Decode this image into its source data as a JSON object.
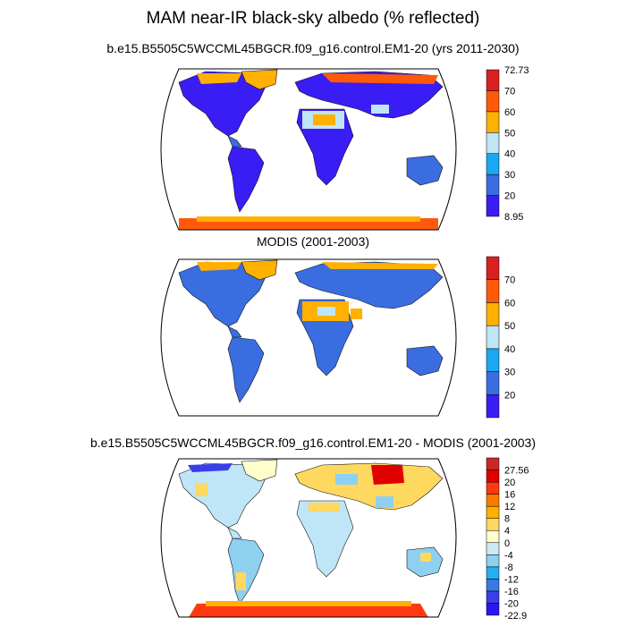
{
  "title": "MAM near-IR black-sky albedo (% reflected)",
  "panels": [
    {
      "title": "b.e15.B5505C5WCCML45BGCR.f09_g16.control.EM1-20 (yrs 2011-2030)",
      "colorbar": {
        "colors": [
          "#3a1cf5",
          "#3a6de0",
          "#1aa8f0",
          "#bfe6f7",
          "#ffb000",
          "#ff5a0a",
          "#d82020"
        ],
        "labels": [
          "8.95",
          "20",
          "30",
          "40",
          "50",
          "60",
          "70",
          "72.73"
        ],
        "min_label": "8.95",
        "max_label": "72.73"
      }
    },
    {
      "title": "MODIS (2001-2003)",
      "colorbar": {
        "colors": [
          "#3a1cf5",
          "#3a6de0",
          "#1aa8f0",
          "#bfe6f7",
          "#ffb000",
          "#ff5a0a",
          "#d82020"
        ],
        "labels": [
          "20",
          "30",
          "40",
          "50",
          "60",
          "70"
        ]
      }
    },
    {
      "title": "b.e15.B5505C5WCCML45BGCR.f09_g16.control.EM1-20 - MODIS (2001-2003)",
      "colorbar": {
        "colors": [
          "#2a16f0",
          "#3a3ee8",
          "#3a78e8",
          "#24b0f0",
          "#8ed0f0",
          "#cfe8f5",
          "#ffffcc",
          "#ffd860",
          "#ffb000",
          "#ff7a00",
          "#ff3a10",
          "#e00000",
          "#c82828"
        ],
        "labels": [
          "-22.9",
          "-20",
          "-16",
          "-12",
          "-8",
          "-4",
          "0",
          "4",
          "8",
          "12",
          "16",
          "20",
          "27.56"
        ]
      }
    }
  ]
}
